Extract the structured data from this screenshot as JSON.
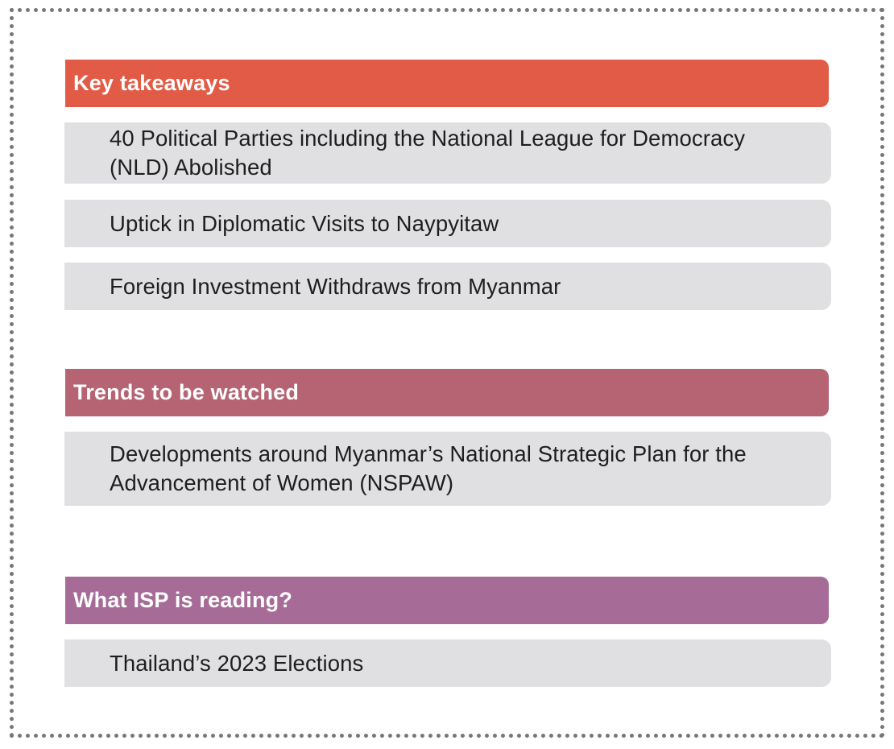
{
  "colors": {
    "key_takeaways_header": "#e25b47",
    "trends_header": "#b66474",
    "reading_header": "#a66c97",
    "item_background": "#e0e0e2",
    "frame_dots": "#77767a"
  },
  "sections": [
    {
      "title": "Key takeaways",
      "items": [
        "40 Political Parties including the National League for Democracy (NLD) Abolished",
        "Uptick in Diplomatic Visits to Naypyitaw",
        "Foreign Investment Withdraws from Myanmar"
      ]
    },
    {
      "title": "Trends to be watched",
      "items": [
        "Developments around Myanmar’s National Strategic Plan for the Advancement of Women (NSPAW)"
      ]
    },
    {
      "title": "What ISP is reading?",
      "items": [
        "Thailand’s 2023 Elections"
      ]
    }
  ]
}
